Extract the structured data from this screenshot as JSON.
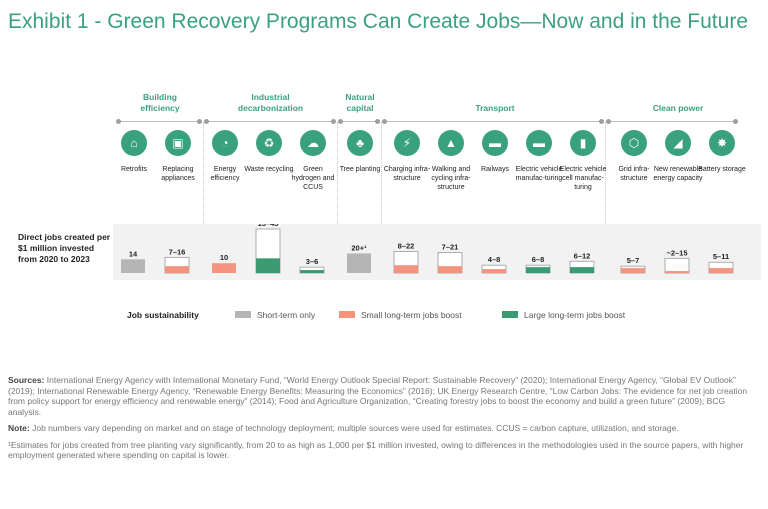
{
  "title": "Exhibit 1 - Green Recovery Programs Can Create Jobs—Now and in the Future",
  "groups": [
    {
      "label": "Building efficiency"
    },
    {
      "label": "Industrial decarbonization"
    },
    {
      "label": "Natural capital"
    },
    {
      "label": "Transport"
    },
    {
      "label": "Clean power"
    }
  ],
  "categories": [
    {
      "label": "Retrofits",
      "icon": "house-icon",
      "glyph": "⌂"
    },
    {
      "label": "Replacing appliances",
      "icon": "appliance-icon",
      "glyph": "▣"
    },
    {
      "label": "Energy efficiency",
      "icon": "gauge-icon",
      "glyph": "◔"
    },
    {
      "label": "Waste recycling",
      "icon": "recycle-icon",
      "glyph": "♻"
    },
    {
      "label": "Green hydrogen and CCUS",
      "icon": "co2-cloud-icon",
      "glyph": "☁"
    },
    {
      "label": "Tree planting",
      "icon": "tree-icon",
      "glyph": "♣"
    },
    {
      "label": "Charging infra-structure",
      "icon": "charger-icon",
      "glyph": "⚡"
    },
    {
      "label": "Walking and cycling infra-structure",
      "icon": "path-icon",
      "glyph": "▲"
    },
    {
      "label": "Railways",
      "icon": "train-icon",
      "glyph": "▬"
    },
    {
      "label": "Electric vehicle manufac-turing",
      "icon": "ev-icon",
      "glyph": "▬"
    },
    {
      "label": "Electric vehicle cell manufac-turing",
      "icon": "battery-cell-icon",
      "glyph": "▮"
    },
    {
      "label": "Grid infra-structure",
      "icon": "grid-icon",
      "glyph": "⬡"
    },
    {
      "label": "New renewable energy capacity",
      "icon": "chart-up-icon",
      "glyph": "◢"
    },
    {
      "label": "Battery storage",
      "icon": "wind-turbine-icon",
      "glyph": "✸"
    }
  ],
  "jobs_label": "Direct jobs created per $1 million invested from 2020 to 2023",
  "legend": {
    "title": "Job sustainability",
    "items": [
      {
        "label": "Short-term only",
        "color": "#b5b5b5"
      },
      {
        "label": "Small long-term jobs boost",
        "color": "#f4937e"
      },
      {
        "label": "Large long-term jobs boost",
        "color": "#3c9a72"
      }
    ]
  },
  "chart_data": {
    "type": "bar",
    "title": "Direct jobs created per $1 million invested from 2020 to 2023",
    "ylabel": "Direct jobs per $1 million invested",
    "ylim": [
      0,
      45
    ],
    "categories": [
      "Retrofits",
      "Replacing appliances",
      "Energy efficiency",
      "Waste recycling",
      "Green hydrogen and CCUS",
      "Tree planting",
      "Charging infrastructure",
      "Walking and cycling infrastructure",
      "Railways",
      "Electric vehicle manufacturing",
      "Electric vehicle cell manufacturing",
      "Grid infrastructure",
      "New renewable energy capacity",
      "Battery storage"
    ],
    "low": [
      14,
      7,
      10,
      15,
      3,
      20,
      8,
      7,
      4,
      6,
      6,
      5,
      2,
      5
    ],
    "high": [
      14,
      16,
      10,
      45,
      6,
      20,
      22,
      21,
      8,
      8,
      12,
      7,
      15,
      11
    ],
    "value_labels": [
      "14",
      "7–16",
      "10",
      "15–45",
      "3–6",
      "20+¹",
      "8–22",
      "7–21",
      "4–8",
      "6–8",
      "6–12",
      "5–7",
      "~2–15",
      "5–11"
    ],
    "sustainability": [
      "short",
      "small",
      "small",
      "large",
      "large",
      "short",
      "small",
      "small",
      "small",
      "large",
      "large",
      "small",
      "small",
      "small"
    ],
    "colors": {
      "short": "#b5b5b5",
      "small": "#f4937e",
      "large": "#3c9a72"
    }
  },
  "footer": {
    "sources_label": "Sources:",
    "sources": "International Energy Agency with International Monetary Fund, “World Energy Outlook Special Report: Sustainable Recovery” (2020); International Energy Agency, “Global EV Outlook” (2019); International Renewable Energy Agency, “Renewable Energy Benefits: Measuring the Economics” (2016); UK Energy Research Centre, “Low Carbon Jobs: The evidence for net job creation from policy support for energy efficiency and renewable energy” (2014); Food and Agriculture Organization, “Creating forestry jobs to boost the economy and build a green future” (2009); BCG analysis.",
    "note_label": "Note:",
    "note": "Job numbers vary depending on market and on stage of technology deployment; multiple sources were used for estimates. CCUS = carbon capture, utilization, and storage.",
    "footnote": "¹Estimates for jobs created from tree planting vary significantly, from 20 to as high as 1,000 per $1 million invested, owing to differences in the methodologies used in the source papers, with higher employment generated where spending on capital is lower."
  }
}
